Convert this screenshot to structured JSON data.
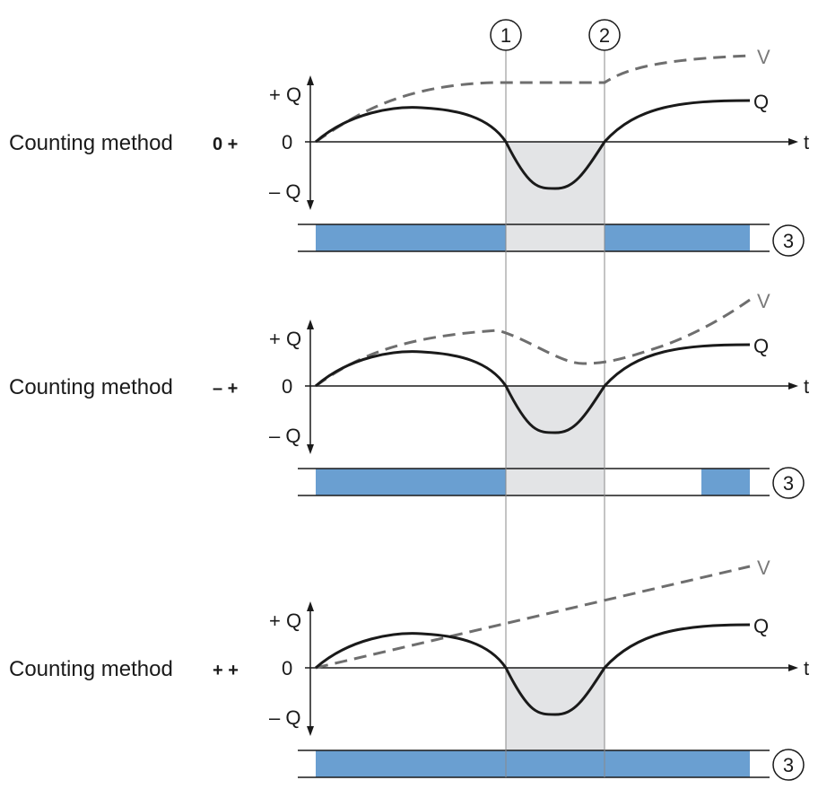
{
  "markers": {
    "m1": "1",
    "m2": "2",
    "m3": "3"
  },
  "axis": {
    "plus_q": "+ Q",
    "zero": "0",
    "minus_q": "– Q",
    "t": "t",
    "v": "V",
    "q": "Q"
  },
  "panels": [
    {
      "prefix": "Counting method",
      "mark": "0 +"
    },
    {
      "prefix": "Counting method",
      "mark": "– +"
    },
    {
      "prefix": "Counting method",
      "mark": "+ +"
    }
  ],
  "colors": {
    "bar_fill": "#6a9fd1",
    "shade": "#e3e4e6",
    "curve": "#1a1a1a",
    "dashed": "#6e6e6e"
  }
}
